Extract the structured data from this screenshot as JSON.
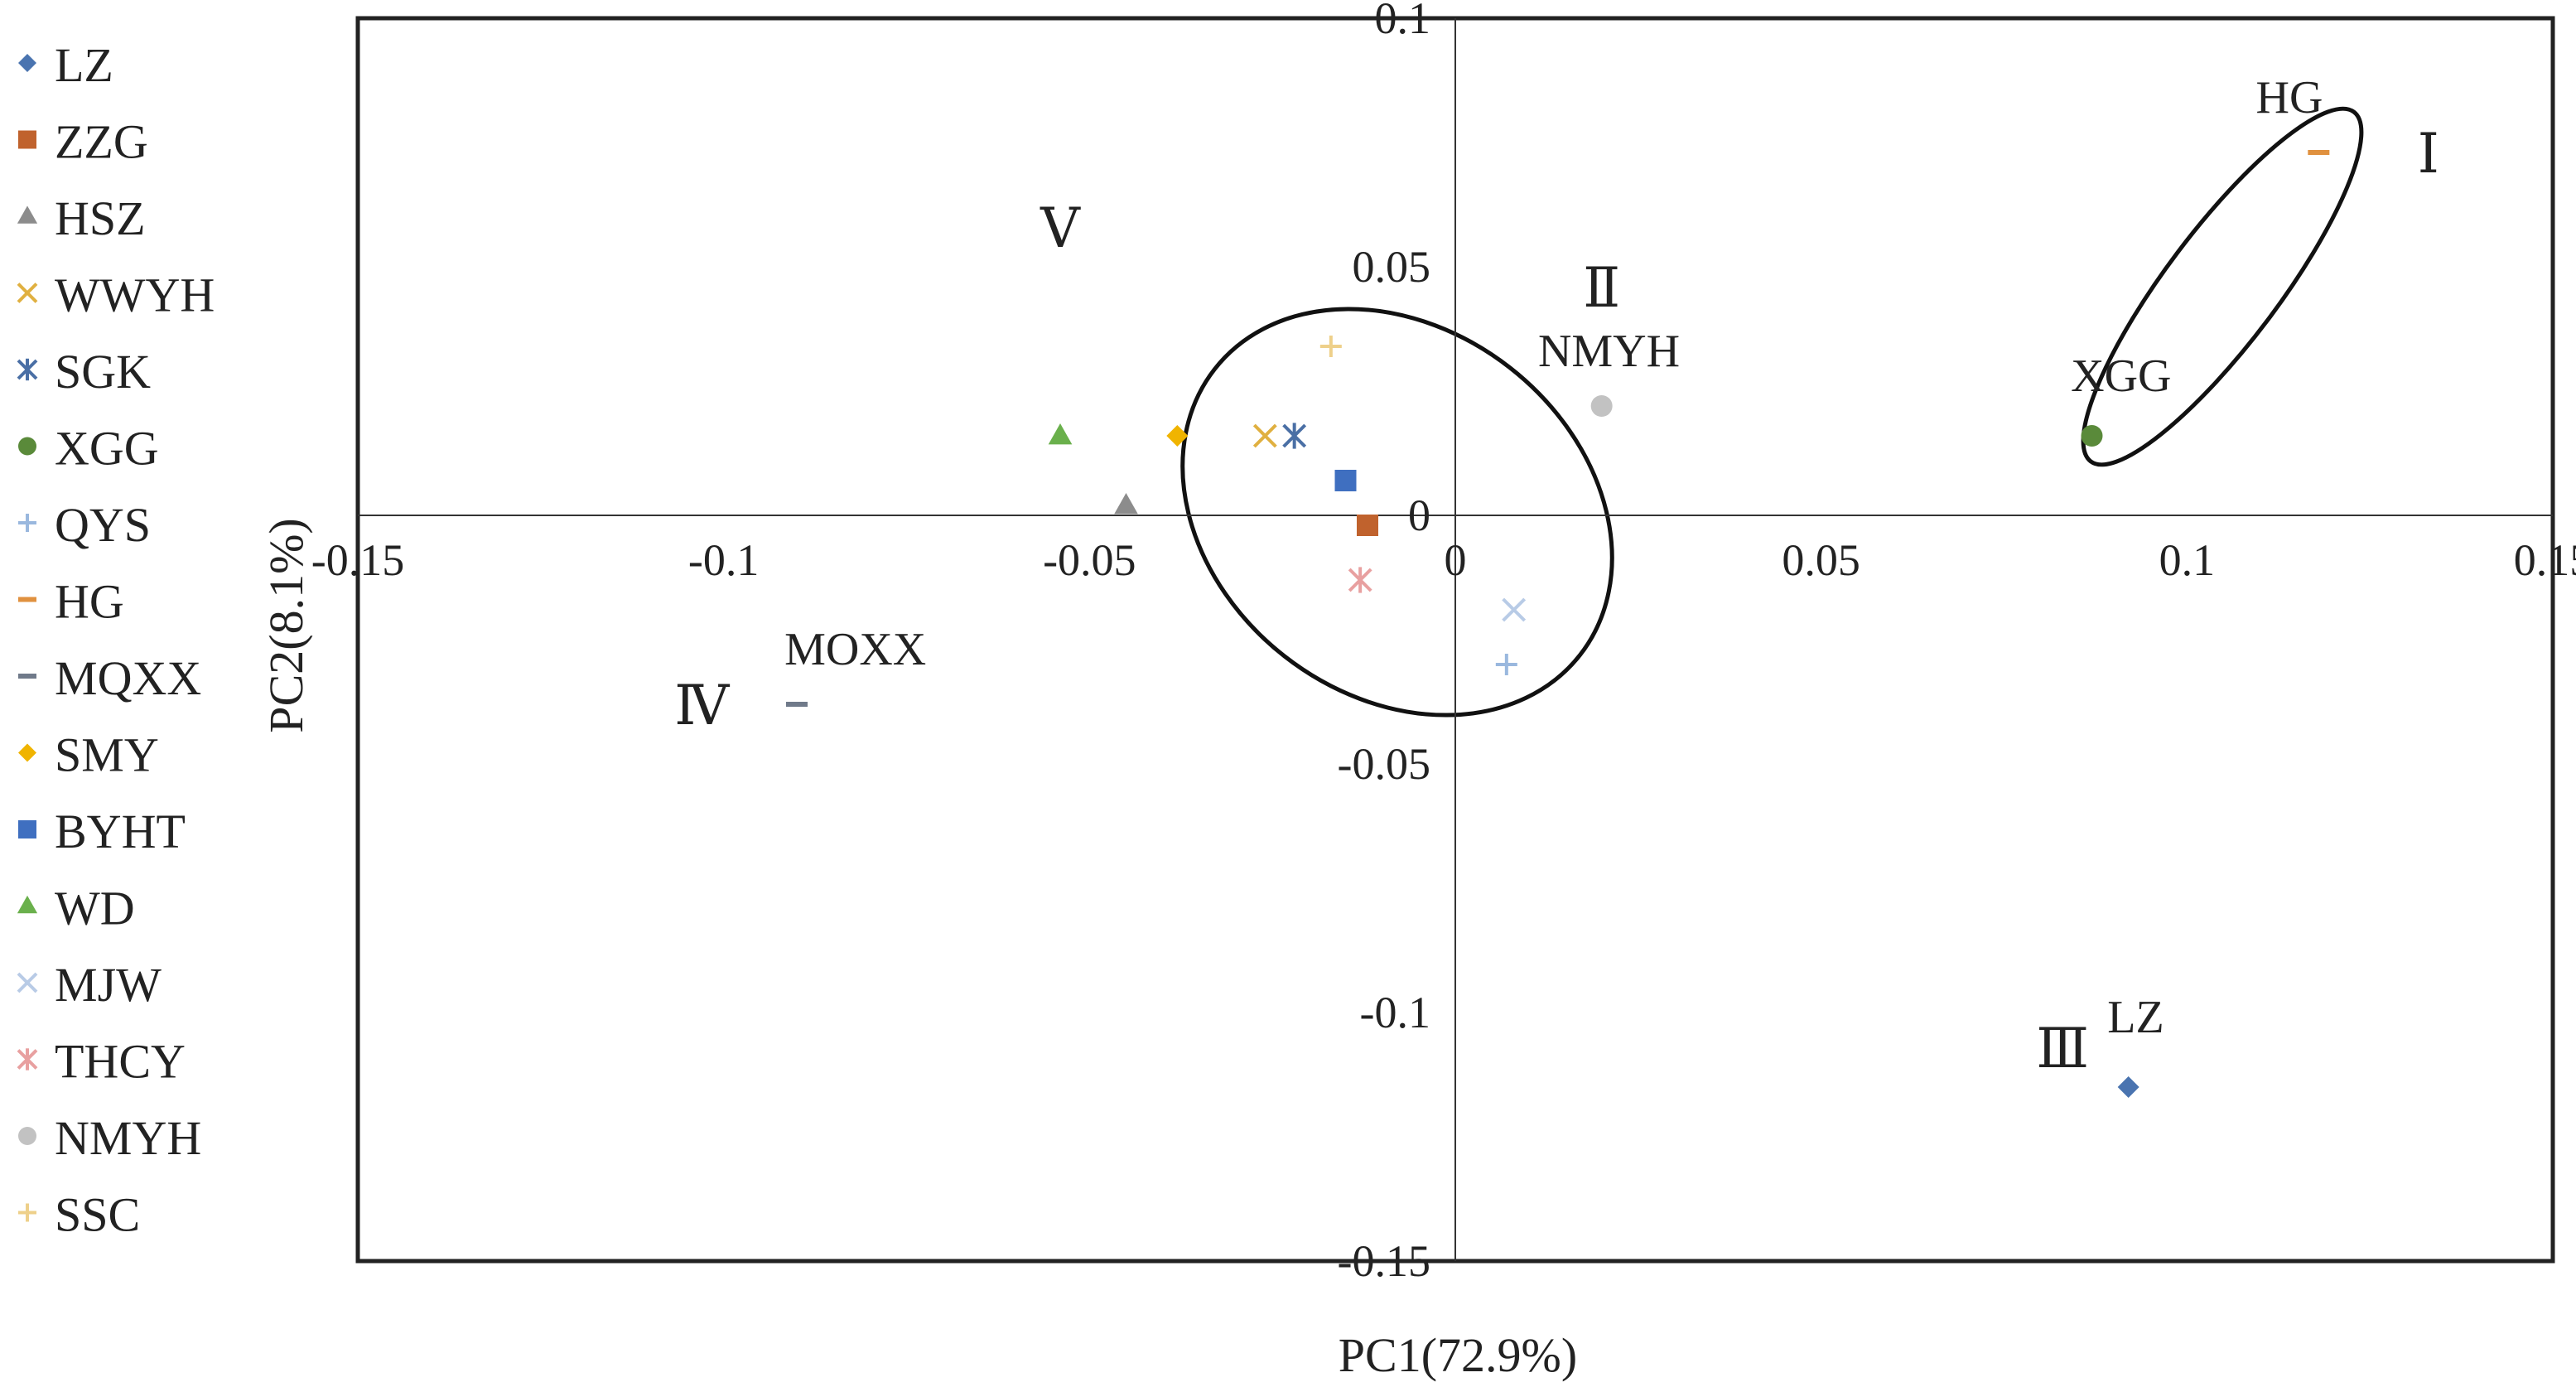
{
  "chart_data": {
    "type": "scatter",
    "xlabel": "PC1(72.9%)",
    "ylabel": "PC2(8.1%)",
    "xlim": [
      -0.15,
      0.15
    ],
    "ylim": [
      -0.15,
      0.1
    ],
    "x_ticks": [
      -0.15,
      -0.1,
      -0.05,
      0,
      0.05,
      0.1,
      0.15
    ],
    "x_tick_labels": [
      "-0.15",
      "-0.1",
      "-0.05",
      "0",
      "0.05",
      "0.1",
      "0.15"
    ],
    "y_ticks": [
      -0.15,
      -0.1,
      -0.05,
      0,
      0.05,
      0.1
    ],
    "y_tick_labels": [
      "-0.15",
      "-0.1",
      "-0.05",
      "0",
      "0.05",
      "0.1"
    ],
    "grid": false,
    "legend_position": "left",
    "series": [
      {
        "name": "LZ",
        "x": 0.092,
        "y": -0.115,
        "marker": "diamond",
        "color": "#4a74b0"
      },
      {
        "name": "ZZG",
        "x": -0.012,
        "y": -0.002,
        "marker": "square",
        "color": "#c0622d"
      },
      {
        "name": "HSZ",
        "x": -0.045,
        "y": 0.002,
        "marker": "triangle",
        "color": "#8c8c8c"
      },
      {
        "name": "WWYH",
        "x": -0.026,
        "y": 0.016,
        "marker": "x",
        "color": "#e0b040"
      },
      {
        "name": "SGK",
        "x": -0.022,
        "y": 0.016,
        "marker": "star",
        "color": "#4a6fa5"
      },
      {
        "name": "XGG",
        "x": 0.087,
        "y": 0.016,
        "marker": "circle",
        "color": "#5a8a3a"
      },
      {
        "name": "QYS",
        "x": 0.007,
        "y": -0.03,
        "marker": "plus",
        "color": "#9ab8de"
      },
      {
        "name": "HG",
        "x": 0.118,
        "y": 0.073,
        "marker": "dash",
        "color": "#e0913f"
      },
      {
        "name": "MQXX",
        "x": -0.09,
        "y": -0.038,
        "marker": "dash",
        "color": "#707a8a"
      },
      {
        "name": "SMY",
        "x": -0.038,
        "y": 0.016,
        "marker": "diamond",
        "color": "#f0b400"
      },
      {
        "name": "BYHT",
        "x": -0.015,
        "y": 0.007,
        "marker": "square",
        "color": "#3f6fc0"
      },
      {
        "name": "WD",
        "x": -0.054,
        "y": 0.016,
        "marker": "triangle",
        "color": "#6ab04c"
      },
      {
        "name": "MJW",
        "x": 0.008,
        "y": -0.019,
        "marker": "x",
        "color": "#b8cbe6"
      },
      {
        "name": "THCY",
        "x": -0.013,
        "y": -0.013,
        "marker": "star",
        "color": "#e8a0a0"
      },
      {
        "name": "NMYH",
        "x": 0.02,
        "y": 0.022,
        "marker": "circle",
        "color": "#c2c2c2"
      },
      {
        "name": "SSC",
        "x": -0.017,
        "y": 0.034,
        "marker": "plus",
        "color": "#eed08a"
      }
    ],
    "annotations": [
      {
        "text": "HG",
        "x": 0.114,
        "y": 0.081
      },
      {
        "text": "Ⅰ",
        "x": 0.133,
        "y": 0.069
      },
      {
        "text": "XGG",
        "x": 0.091,
        "y": 0.025
      },
      {
        "text": "Ⅱ",
        "x": 0.02,
        "y": 0.042
      },
      {
        "text": "NMYH",
        "x": 0.021,
        "y": 0.03
      },
      {
        "text": "Ⅴ",
        "x": -0.054,
        "y": 0.054
      },
      {
        "text": "MOXX",
        "x": -0.082,
        "y": -0.03
      },
      {
        "text": "Ⅳ",
        "x": -0.103,
        "y": -0.042
      },
      {
        "text": "Ⅲ",
        "x": 0.083,
        "y": -0.111
      },
      {
        "text": "LZ",
        "x": 0.093,
        "y": -0.104
      }
    ],
    "groups": [
      {
        "name": "Ⅰ",
        "center": [
          0.105,
          0.045
        ],
        "members": [
          "HG",
          "XGG"
        ]
      },
      {
        "name": "Ⅴ",
        "center": [
          -0.034,
          0.005
        ],
        "members": [
          "WD",
          "SMY",
          "WWYH",
          "SGK",
          "BYHT",
          "HSZ",
          "ZZG",
          "THCY",
          "SSC",
          "MJW",
          "QYS"
        ]
      }
    ]
  }
}
